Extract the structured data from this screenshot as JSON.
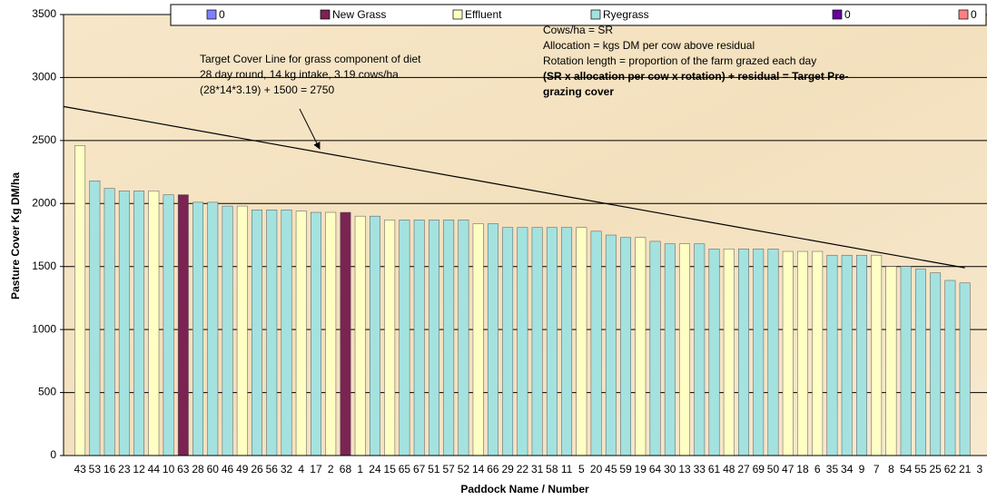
{
  "chart_data": {
    "type": "bar",
    "y_label": "Pasture Cover Kg DM/ha",
    "x_label": "Paddock Name / Number",
    "categories": [
      "43",
      "53",
      "16",
      "23",
      "12",
      "44",
      "10",
      "63",
      "28",
      "60",
      "46",
      "49",
      "26",
      "56",
      "32",
      "4",
      "17",
      "2",
      "68",
      "1",
      "24",
      "15",
      "65",
      "67",
      "51",
      "57",
      "52",
      "14",
      "66",
      "29",
      "22",
      "31",
      "58",
      "11",
      "5",
      "20",
      "45",
      "59",
      "19",
      "64",
      "30",
      "13",
      "33",
      "61",
      "48",
      "27",
      "69",
      "50",
      "47",
      "18",
      "6",
      "35",
      "34",
      "9",
      "7",
      "8",
      "54",
      "55",
      "25",
      "62",
      "21",
      "3"
    ],
    "series": [
      {
        "name": "0",
        "color": "#8080ff",
        "values": [
          null,
          null,
          null,
          null,
          null,
          null,
          null,
          null,
          null,
          null,
          null,
          null,
          null,
          null,
          null,
          null,
          null,
          null,
          null,
          null,
          null,
          null,
          null,
          null,
          null,
          null,
          null,
          null,
          null,
          null,
          null,
          null,
          null,
          null,
          null,
          null,
          null,
          null,
          null,
          null,
          null,
          null,
          null,
          null,
          null,
          null,
          null,
          null,
          null,
          null,
          null,
          null,
          null,
          null,
          null,
          null,
          null,
          null,
          null,
          null,
          null,
          null
        ]
      },
      {
        "name": "New Grass",
        "color": "#7b2352",
        "values": [
          null,
          null,
          null,
          null,
          null,
          null,
          null,
          2070,
          null,
          null,
          null,
          null,
          null,
          null,
          null,
          null,
          null,
          null,
          1930,
          null,
          null,
          null,
          null,
          null,
          null,
          null,
          null,
          null,
          null,
          null,
          null,
          null,
          null,
          null,
          null,
          null,
          null,
          null,
          null,
          null,
          null,
          null,
          null,
          null,
          null,
          null,
          null,
          null,
          null,
          null,
          null,
          null,
          null,
          null,
          null,
          null,
          null,
          null,
          null,
          null,
          null,
          null
        ]
      },
      {
        "name": "Effluent",
        "color": "#ffffc4",
        "values": [
          2460,
          null,
          null,
          null,
          null,
          2100,
          null,
          null,
          null,
          null,
          null,
          1980,
          null,
          null,
          null,
          1940,
          null,
          1930,
          null,
          1900,
          null,
          1870,
          null,
          null,
          null,
          null,
          null,
          1840,
          null,
          null,
          null,
          null,
          null,
          null,
          1810,
          null,
          null,
          null,
          1730,
          null,
          null,
          1680,
          null,
          null,
          1640,
          null,
          null,
          null,
          1620,
          1620,
          1620,
          null,
          null,
          null,
          1590,
          1500,
          null,
          null,
          null,
          null,
          null,
          null
        ]
      },
      {
        "name": "Ryegrass",
        "color": "#a4e2e0",
        "values": [
          null,
          2180,
          2120,
          2100,
          2100,
          null,
          2070,
          null,
          2010,
          2010,
          1980,
          null,
          1950,
          1950,
          1950,
          null,
          1930,
          null,
          null,
          null,
          1900,
          null,
          1870,
          1870,
          1870,
          1870,
          1870,
          null,
          1840,
          1810,
          1810,
          1810,
          1810,
          1810,
          null,
          1780,
          1750,
          1730,
          null,
          1700,
          1680,
          null,
          1680,
          1640,
          null,
          1640,
          1640,
          1640,
          null,
          null,
          null,
          1590,
          1590,
          1590,
          null,
          null,
          1500,
          1480,
          1450,
          1390,
          1370,
          null
        ]
      },
      {
        "name": "0",
        "color": "#660099",
        "values": [
          null,
          null,
          null,
          null,
          null,
          null,
          null,
          null,
          null,
          null,
          null,
          null,
          null,
          null,
          null,
          null,
          null,
          null,
          null,
          null,
          null,
          null,
          null,
          null,
          null,
          null,
          null,
          null,
          null,
          null,
          null,
          null,
          null,
          null,
          null,
          null,
          null,
          null,
          null,
          null,
          null,
          null,
          null,
          null,
          null,
          null,
          null,
          null,
          null,
          null,
          null,
          null,
          null,
          null,
          null,
          null,
          null,
          null,
          null,
          null,
          null,
          null
        ]
      },
      {
        "name": "0",
        "color": "#ff8080",
        "values": [
          null,
          null,
          null,
          null,
          null,
          null,
          null,
          null,
          null,
          null,
          null,
          null,
          null,
          null,
          null,
          null,
          null,
          null,
          null,
          null,
          null,
          null,
          null,
          null,
          null,
          null,
          null,
          null,
          null,
          null,
          null,
          null,
          null,
          null,
          null,
          null,
          null,
          null,
          null,
          null,
          null,
          null,
          null,
          null,
          null,
          null,
          null,
          null,
          null,
          null,
          null,
          null,
          null,
          null,
          null,
          null,
          null,
          null,
          null,
          null,
          null,
          null
        ]
      }
    ],
    "target_line": {
      "values": [
        2770,
        1490
      ]
    },
    "annotations": {
      "target": [
        "Target Cover Line for  grass component of diet",
        "28 day round, 14 kg intake, 3.19 cows/ha",
        "(28*14*3.19) + 1500 = 2750"
      ],
      "notes": [
        "Cows/ha = SR",
        "Allocation = kgs DM per cow above residual",
        "Rotation length = proportion of the farm grazed each day"
      ],
      "formula": [
        "(SR x allocation per cow x rotation) + residual = Target Pre-",
        "grazing cover"
      ]
    },
    "ylim": [
      0,
      3500
    ],
    "yticks": [
      0,
      500,
      1000,
      1500,
      2000,
      2500,
      3000,
      3500
    ],
    "grid": true
  }
}
